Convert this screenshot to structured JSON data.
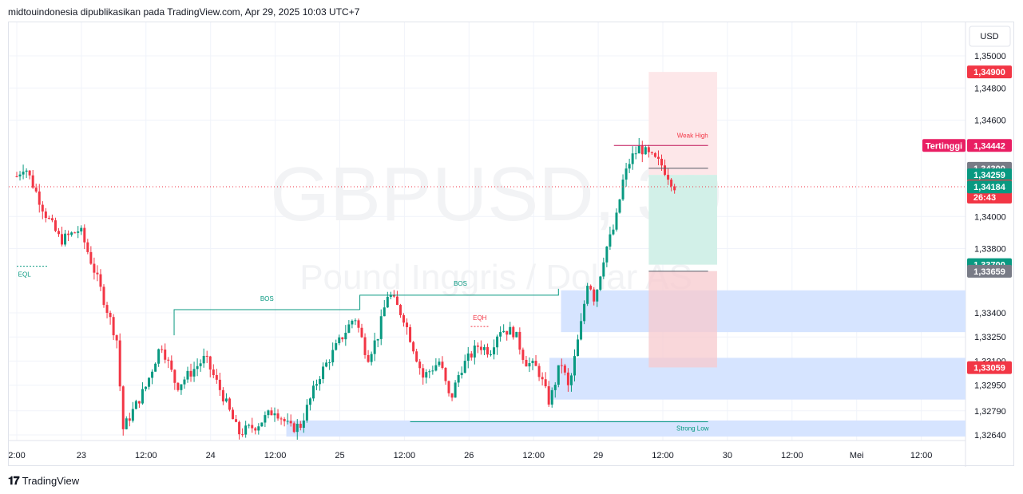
{
  "header": {
    "publish_text": "midtouindonesia dipublikasikan pada TradingView.com, Apr 29, 2025 10:03 UTC+7"
  },
  "footer": {
    "brand": "TradingView"
  },
  "colors": {
    "up": "#089981",
    "down": "#f23645",
    "zone": "#d6e4ff",
    "risk": "#fde7e9",
    "reward": "#d2f0e8",
    "grid": "#f0f3fa"
  },
  "chart_data": {
    "type": "candlestick",
    "symbol_watermark": "GBPUSD, 30",
    "description_watermark": "Pound Inggris / Dollar AS",
    "currency_button": "USD",
    "y_ticks": [
      {
        "label": "1,35000",
        "value": 1.35
      },
      {
        "label": "1,34800",
        "value": 1.348
      },
      {
        "label": "1,34600",
        "value": 1.346
      },
      {
        "label": "1,34000",
        "value": 1.34
      },
      {
        "label": "1,33800",
        "value": 1.338
      },
      {
        "label": "1,33400",
        "value": 1.334
      },
      {
        "label": "1,33250",
        "value": 1.3325
      },
      {
        "label": "1,33100",
        "value": 1.331
      },
      {
        "label": "1,32950",
        "value": 1.3295
      },
      {
        "label": "1,32790",
        "value": 1.3279
      },
      {
        "label": "1,32640",
        "value": 1.3264
      }
    ],
    "x_ticks": [
      "2:00",
      "23",
      "12:00",
      "24",
      "12:00",
      "25",
      "12:00",
      "26",
      "12:00",
      "29",
      "12:00",
      "30",
      "12:00",
      "Mei",
      "12:00"
    ],
    "price_badges": [
      {
        "label": "1,34900",
        "value": 1.349,
        "color": "#f23645"
      },
      {
        "label": "1,34442",
        "value": 1.34442,
        "color": "#e91e63",
        "tag": "Tertinggi"
      },
      {
        "label": "1,34300",
        "value": 1.343,
        "color": "#787b86"
      },
      {
        "label": "1,34259",
        "value": 1.34259,
        "color": "#089981"
      },
      {
        "label": "1,34185",
        "value": 1.34185,
        "color": "#f23645",
        "sub": "26:43"
      },
      {
        "label": "1,34184",
        "value": 1.34184,
        "color": "#089981"
      },
      {
        "label": "1,33700",
        "value": 1.337,
        "color": "#089981"
      },
      {
        "label": "1,33659",
        "value": 1.33659,
        "color": "#787b86"
      },
      {
        "label": "1,33059",
        "value": 1.33059,
        "color": "#f23645"
      }
    ],
    "current_price": 1.34185,
    "annotations": [
      {
        "text": "BOS",
        "color": "#089981"
      },
      {
        "text": "BOS",
        "color": "#089981"
      },
      {
        "text": "EQH",
        "color": "#f23645"
      },
      {
        "text": "EQL",
        "color": "#089981"
      },
      {
        "text": "Weak High",
        "color": "#f23645"
      },
      {
        "text": "Strong Low",
        "color": "#089981"
      }
    ],
    "path_x": [
      0,
      0.6,
      2.2,
      3.4,
      4.9,
      6.2,
      7.8,
      8.2,
      10.0,
      11.2,
      12.4,
      14.6,
      16.0,
      17.2,
      18.6,
      20.0,
      21.2,
      22.0,
      23.4,
      25.0,
      26.2,
      27.2,
      28.0,
      28.8,
      30.0,
      31.5,
      32.8,
      33.6,
      34.4,
      35.8,
      36.7,
      37.4,
      38.6,
      39.4,
      40.4,
      41.3,
      42.2,
      42.8,
      43.8,
      44.3,
      44.8,
      45.6,
      46.4,
      47.0,
      47.6,
      48.3,
      49.0,
      50.0,
      51.0
    ],
    "path_y": [
      1.3425,
      1.3432,
      1.3402,
      1.3385,
      1.3392,
      1.3362,
      1.3322,
      1.3267,
      1.3294,
      1.3321,
      1.3294,
      1.3312,
      1.3288,
      1.3265,
      1.327,
      1.328,
      1.3268,
      1.327,
      1.33,
      1.3322,
      1.3338,
      1.3312,
      1.3326,
      1.3353,
      1.3337,
      1.33,
      1.331,
      1.3285,
      1.3305,
      1.332,
      1.3316,
      1.333,
      1.3328,
      1.331,
      1.3305,
      1.3284,
      1.331,
      1.3292,
      1.3335,
      1.3362,
      1.3348,
      1.3378,
      1.3395,
      1.3422,
      1.3436,
      1.3443,
      1.3438,
      1.3432,
      1.3419
    ]
  }
}
